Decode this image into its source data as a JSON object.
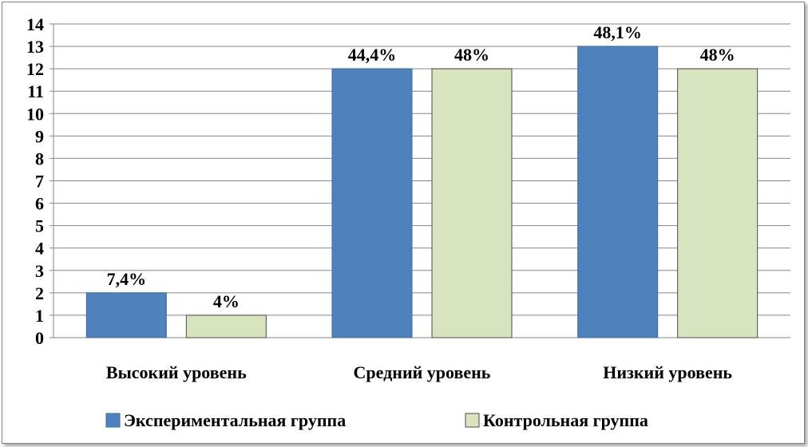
{
  "chart_data": {
    "type": "bar",
    "categories": [
      "Высокий уровень",
      "Средний уровень",
      "Низкий уровень"
    ],
    "series": [
      {
        "name": "Экспериментальная группа",
        "color": "#4f81bd",
        "values": [
          2,
          12,
          13
        ],
        "labels": [
          "7,4%",
          "44,4%",
          "48,1%"
        ]
      },
      {
        "name": "Контрольная группа",
        "color": "#d7e4bd",
        "values": [
          1,
          12,
          12
        ],
        "labels": [
          "4%",
          "48%",
          "48%"
        ]
      }
    ],
    "ylim": [
      0,
      14
    ],
    "yticks": [
      0,
      1,
      2,
      3,
      4,
      5,
      6,
      7,
      8,
      9,
      10,
      11,
      12,
      13,
      14
    ],
    "grid": true,
    "legend": "bottom"
  }
}
